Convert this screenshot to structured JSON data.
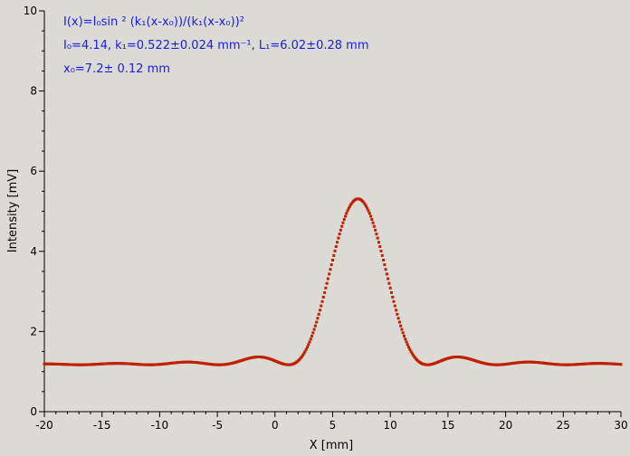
{
  "chart_data": {
    "type": "scatter",
    "xlabel": "X [mm]",
    "ylabel": "Intensity [mV]",
    "xlim": [
      -20,
      30
    ],
    "ylim": [
      0,
      10
    ],
    "x_ticks": [
      "-20",
      "-15",
      "-10",
      "-5",
      "0",
      "5",
      "10",
      "15",
      "20",
      "25",
      "30"
    ],
    "y_ticks": [
      "0",
      "2",
      "4",
      "6",
      "8",
      "10"
    ],
    "grid": false,
    "colors": {
      "background": "#dcdad5",
      "points": "#c02000",
      "annotation": "#1a1aee",
      "axis": "#000000"
    },
    "annotation": {
      "line1": "I(x)=I₀sin ² (k₁(x-x₀))/(k₁(x-x₀))²",
      "line2": "I₀=4.14,  k₁=0.522±0.024 mm⁻¹,   L₁=6.02±0.28 mm",
      "line3": "x₀=7.2±   0.12 mm"
    },
    "fit": {
      "I0": 4.14,
      "k1": 0.522,
      "x0": 7.2,
      "baseline": 1.17
    },
    "sampled_points": [
      {
        "x": -20,
        "y": 1.18
      },
      {
        "x": -15,
        "y": 1.18
      },
      {
        "x": -10,
        "y": 1.17
      },
      {
        "x": -7.5,
        "y": 1.22
      },
      {
        "x": -5,
        "y": 1.16
      },
      {
        "x": -1.5,
        "y": 1.35
      },
      {
        "x": 1.5,
        "y": 1.16
      },
      {
        "x": 3.5,
        "y": 2.4
      },
      {
        "x": 5.5,
        "y": 4.5
      },
      {
        "x": 7.2,
        "y": 5.31
      },
      {
        "x": 9,
        "y": 4.5
      },
      {
        "x": 11,
        "y": 2.4
      },
      {
        "x": 13,
        "y": 1.16
      },
      {
        "x": 15.8,
        "y": 1.35
      },
      {
        "x": 19,
        "y": 1.16
      },
      {
        "x": 22,
        "y": 1.22
      },
      {
        "x": 25,
        "y": 1.17
      },
      {
        "x": 30,
        "y": 1.17
      }
    ]
  }
}
